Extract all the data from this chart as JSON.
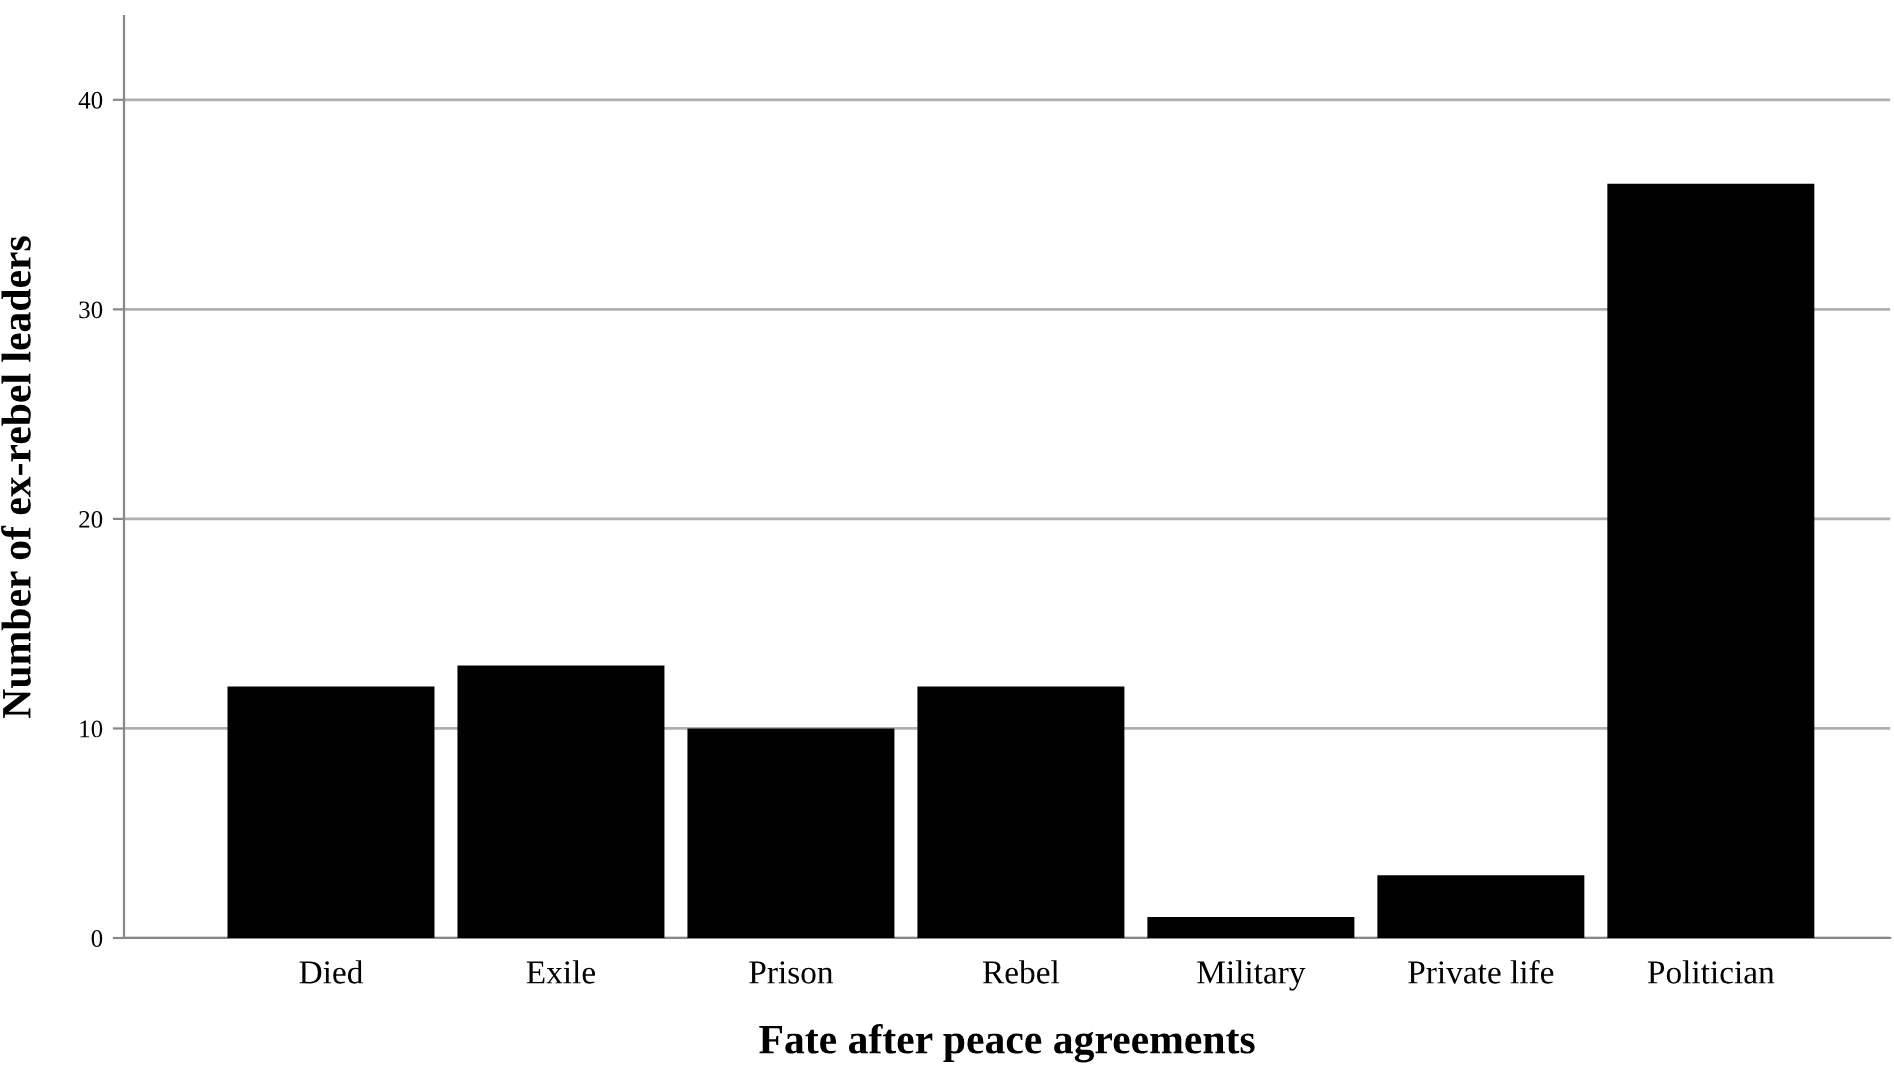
{
  "chart_data": {
    "type": "bar",
    "xlabel": "Fate after peace agreements",
    "ylabel": "Number of ex-rebel leaders",
    "categories": [
      "Died",
      "Exile",
      "Prison",
      "Rebel",
      "Military",
      "Private life",
      "Politician"
    ],
    "values": [
      12,
      13,
      10,
      12,
      1,
      3,
      36
    ],
    "color": "#000000",
    "ylim": [
      0,
      44
    ],
    "yticks": [
      0,
      10,
      20,
      30,
      40
    ],
    "grid": "y",
    "legend": false
  }
}
